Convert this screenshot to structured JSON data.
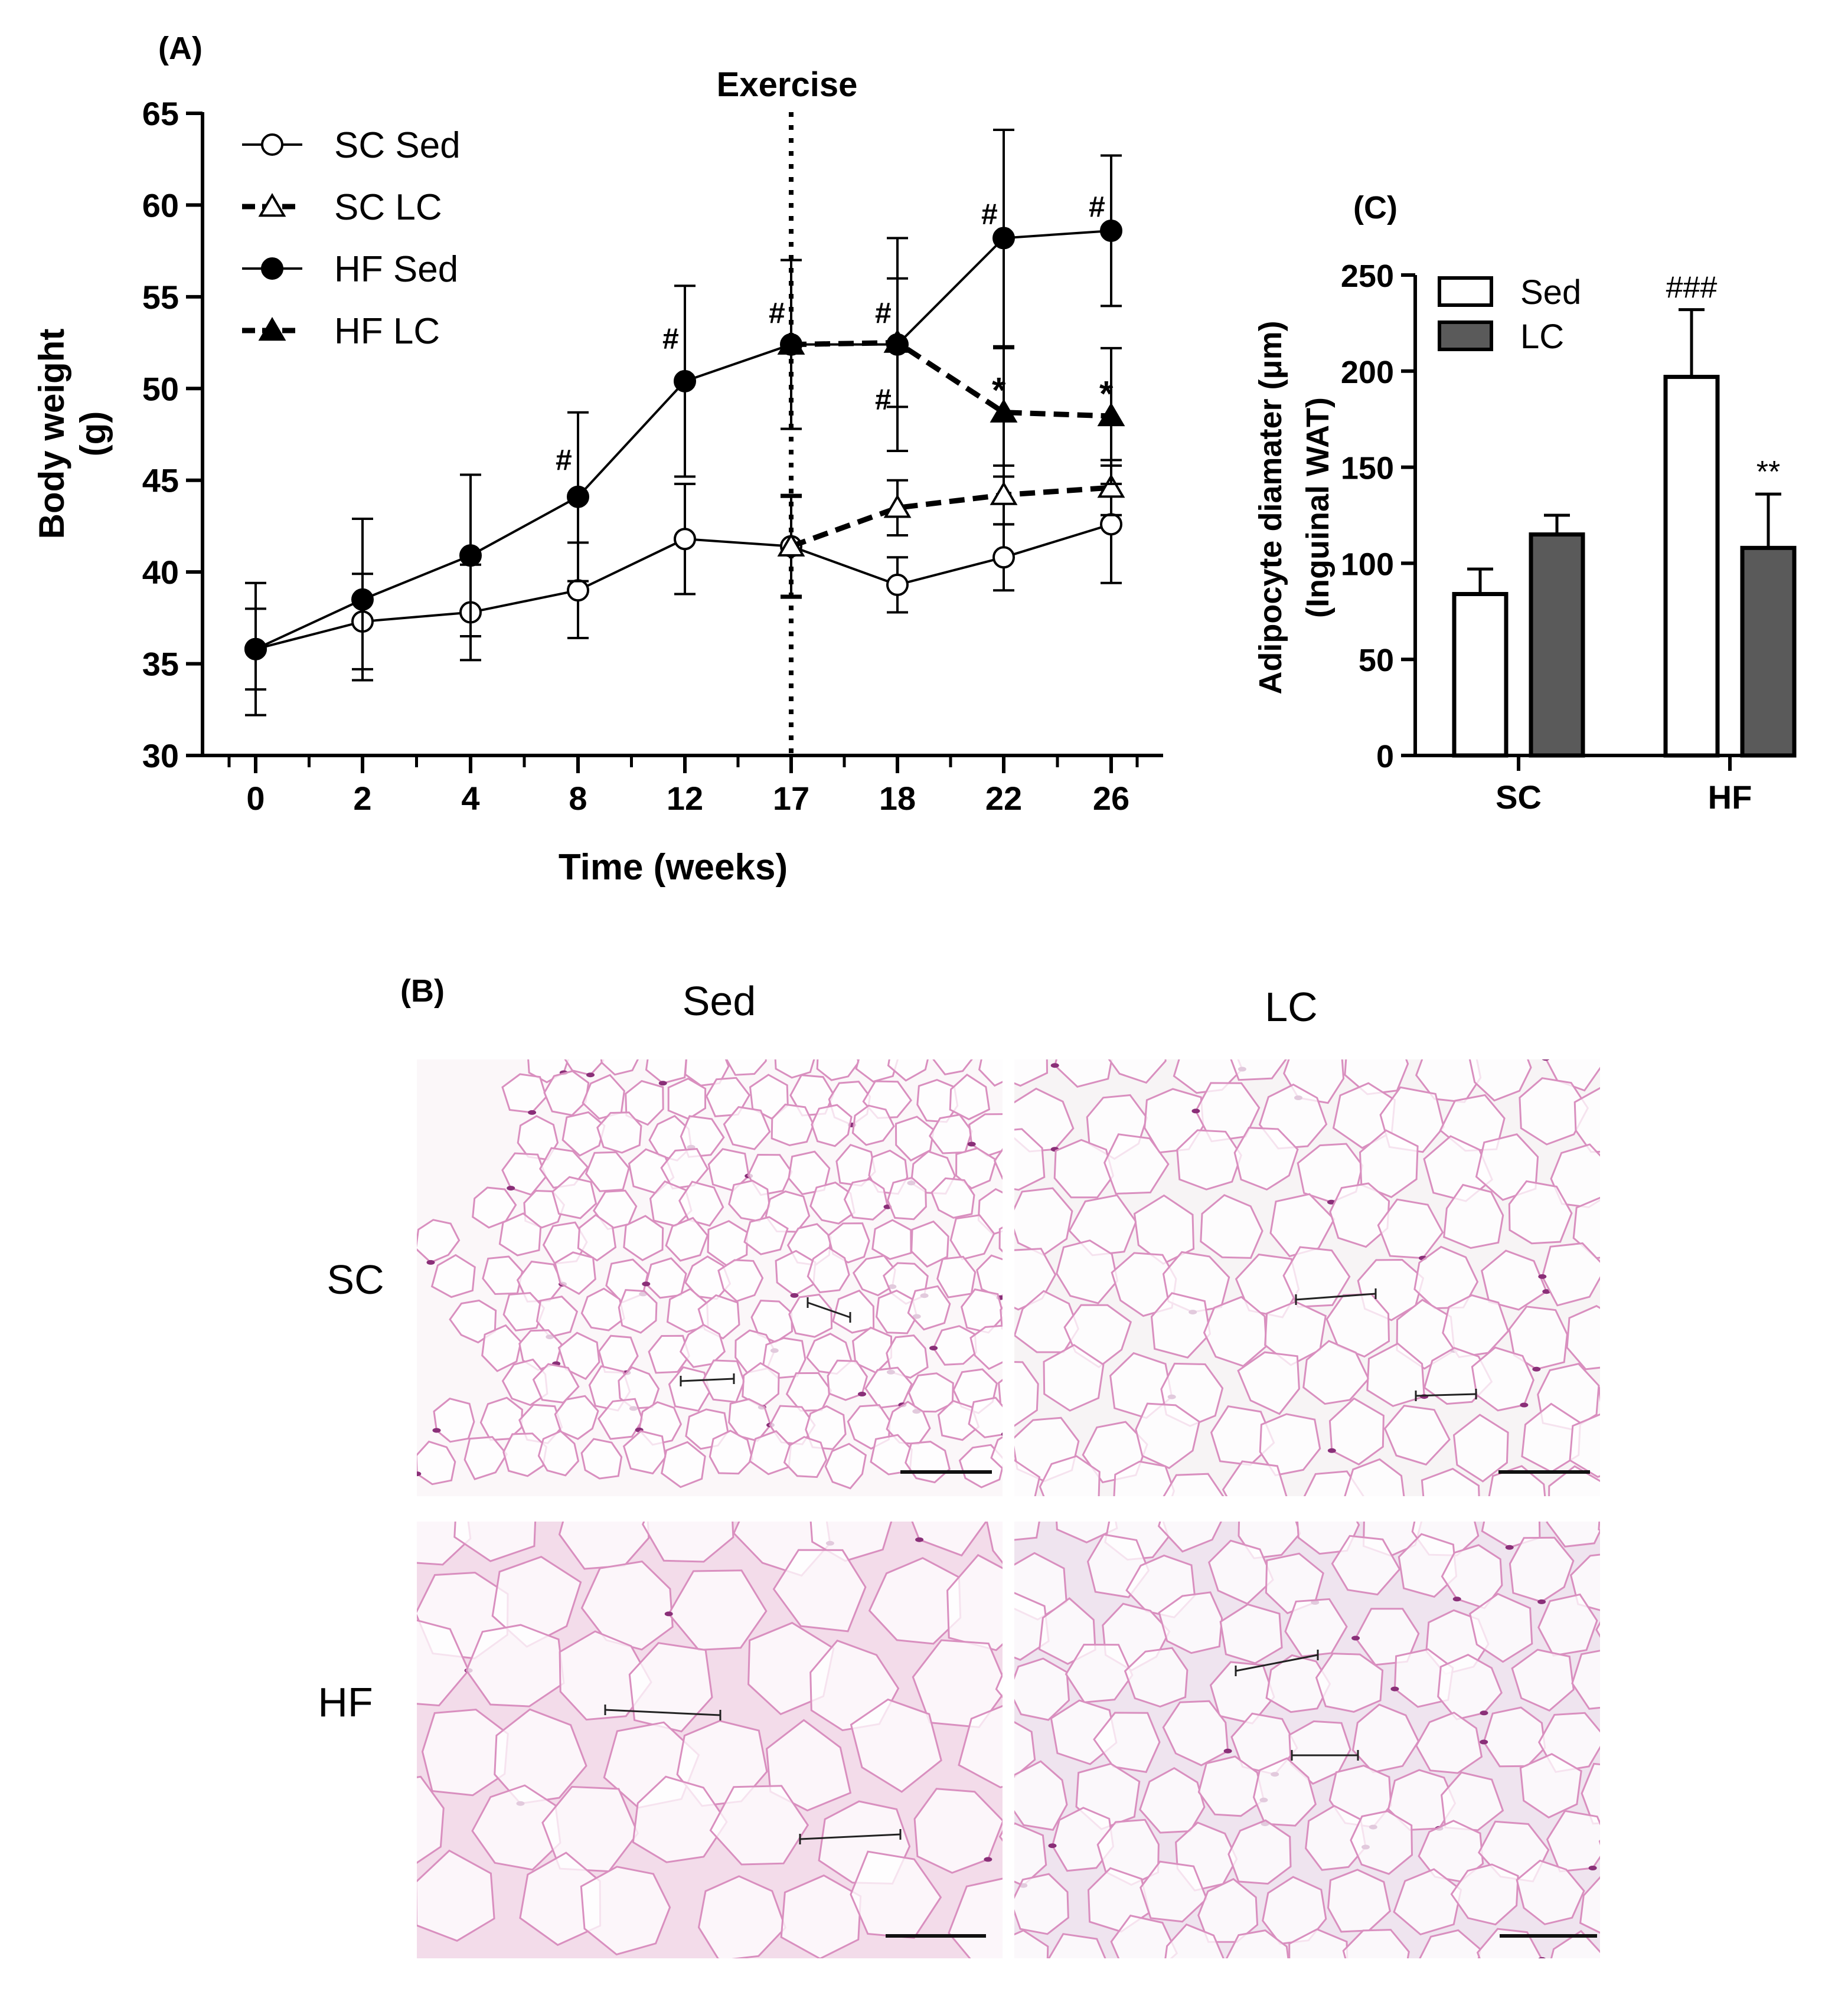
{
  "chart_data": [
    {
      "panel": "(A)",
      "type": "line",
      "xlabel": "Time (weeks)",
      "ylabel": "Body weight (g)",
      "ylabel_lines": [
        "Body weight",
        "(g)"
      ],
      "ylim": [
        30,
        65
      ],
      "yticks": [
        "30",
        "35",
        "40",
        "45",
        "50",
        "55",
        "60",
        "65"
      ],
      "categories": [
        "0",
        "2",
        "4",
        "8",
        "12",
        "17",
        "18",
        "22",
        "26"
      ],
      "annotation": "Exercise",
      "annotation_at": "17",
      "legend_position": "top-left",
      "series": [
        {
          "name": "SC Sed",
          "marker": "open-circle",
          "line": "solid",
          "color": "#000000",
          "x": [
            "0",
            "2",
            "4",
            "8",
            "12",
            "17",
            "18",
            "22",
            "26"
          ],
          "values": [
            35.8,
            37.3,
            37.8,
            39.0,
            41.8,
            41.4,
            39.3,
            40.8,
            42.6
          ],
          "errors": [
            2.2,
            2.6,
            2.6,
            2.6,
            3.0,
            2.8,
            1.5,
            1.8,
            3.2
          ]
        },
        {
          "name": "SC LC",
          "marker": "open-triangle",
          "line": "dashed",
          "color": "#000000",
          "x": [
            "17",
            "18",
            "22",
            "26"
          ],
          "values": [
            41.4,
            43.5,
            44.2,
            44.6
          ],
          "errors": [
            2.7,
            1.5,
            1.6,
            1.5
          ]
        },
        {
          "name": "HF Sed",
          "marker": "filled-circle",
          "line": "solid",
          "color": "#000000",
          "x": [
            "0",
            "2",
            "4",
            "8",
            "12",
            "17",
            "18",
            "22",
            "26"
          ],
          "values": [
            35.8,
            38.5,
            40.9,
            44.1,
            50.4,
            52.4,
            52.4,
            58.2,
            58.6
          ],
          "errors": [
            3.6,
            4.4,
            4.4,
            4.6,
            5.2,
            4.6,
            5.8,
            5.9,
            4.1
          ]
        },
        {
          "name": "HF LC",
          "marker": "filled-triangle",
          "line": "dashed",
          "color": "#000000",
          "x": [
            "17",
            "18",
            "22",
            "26"
          ],
          "values": [
            52.4,
            52.5,
            48.7,
            48.5
          ],
          "errors": [
            4.6,
            3.5,
            3.5,
            3.7
          ]
        }
      ],
      "markers": [
        {
          "text": "#",
          "x": "8",
          "y": 46.2
        },
        {
          "text": "#",
          "x": "12",
          "y": 52.8
        },
        {
          "text": "#",
          "x": "17",
          "y": 54.2
        },
        {
          "text": "#",
          "x": "18",
          "y": 54.2
        },
        {
          "text": "#",
          "x": "18",
          "y": 49.5
        },
        {
          "text": "#",
          "x": "22",
          "y": 59.6
        },
        {
          "text": "#",
          "x": "26",
          "y": 60.0
        },
        {
          "text": "*",
          "x": "22",
          "y": 49.9
        },
        {
          "text": "*",
          "x": "26",
          "y": 49.7
        }
      ]
    },
    {
      "panel": "(C)",
      "type": "bar",
      "ylabel": "Adipocyte diamater (µm) (Inguinal WAT)",
      "ylabel_lines": [
        "Adipocyte diamater (μm)",
        "(Inguinal WAT)"
      ],
      "ylim": [
        0,
        250
      ],
      "yticks": [
        "0",
        "50",
        "100",
        "150",
        "200",
        "250"
      ],
      "categories": [
        "SC",
        "HF"
      ],
      "legend_position": "top-left",
      "series": [
        {
          "name": "Sed",
          "color": "#ffffff",
          "values": [
            84,
            197
          ],
          "errors": [
            13,
            35
          ]
        },
        {
          "name": "LC",
          "color": "#5a5a5a",
          "values": [
            115,
            108
          ],
          "errors": [
            10,
            28
          ]
        }
      ],
      "annotations": [
        {
          "text": "###",
          "category": "HF",
          "series": "Sed"
        },
        {
          "text": "**",
          "category": "HF",
          "series": "LC"
        }
      ]
    }
  ],
  "histology": {
    "panel": "(B)",
    "columns": [
      "Sed",
      "LC"
    ],
    "rows": [
      "SC",
      "HF"
    ],
    "cell_colors": {
      "background": "#f8eef4",
      "membrane": "#d98fbf",
      "nuclei": "#8a2f78"
    }
  }
}
